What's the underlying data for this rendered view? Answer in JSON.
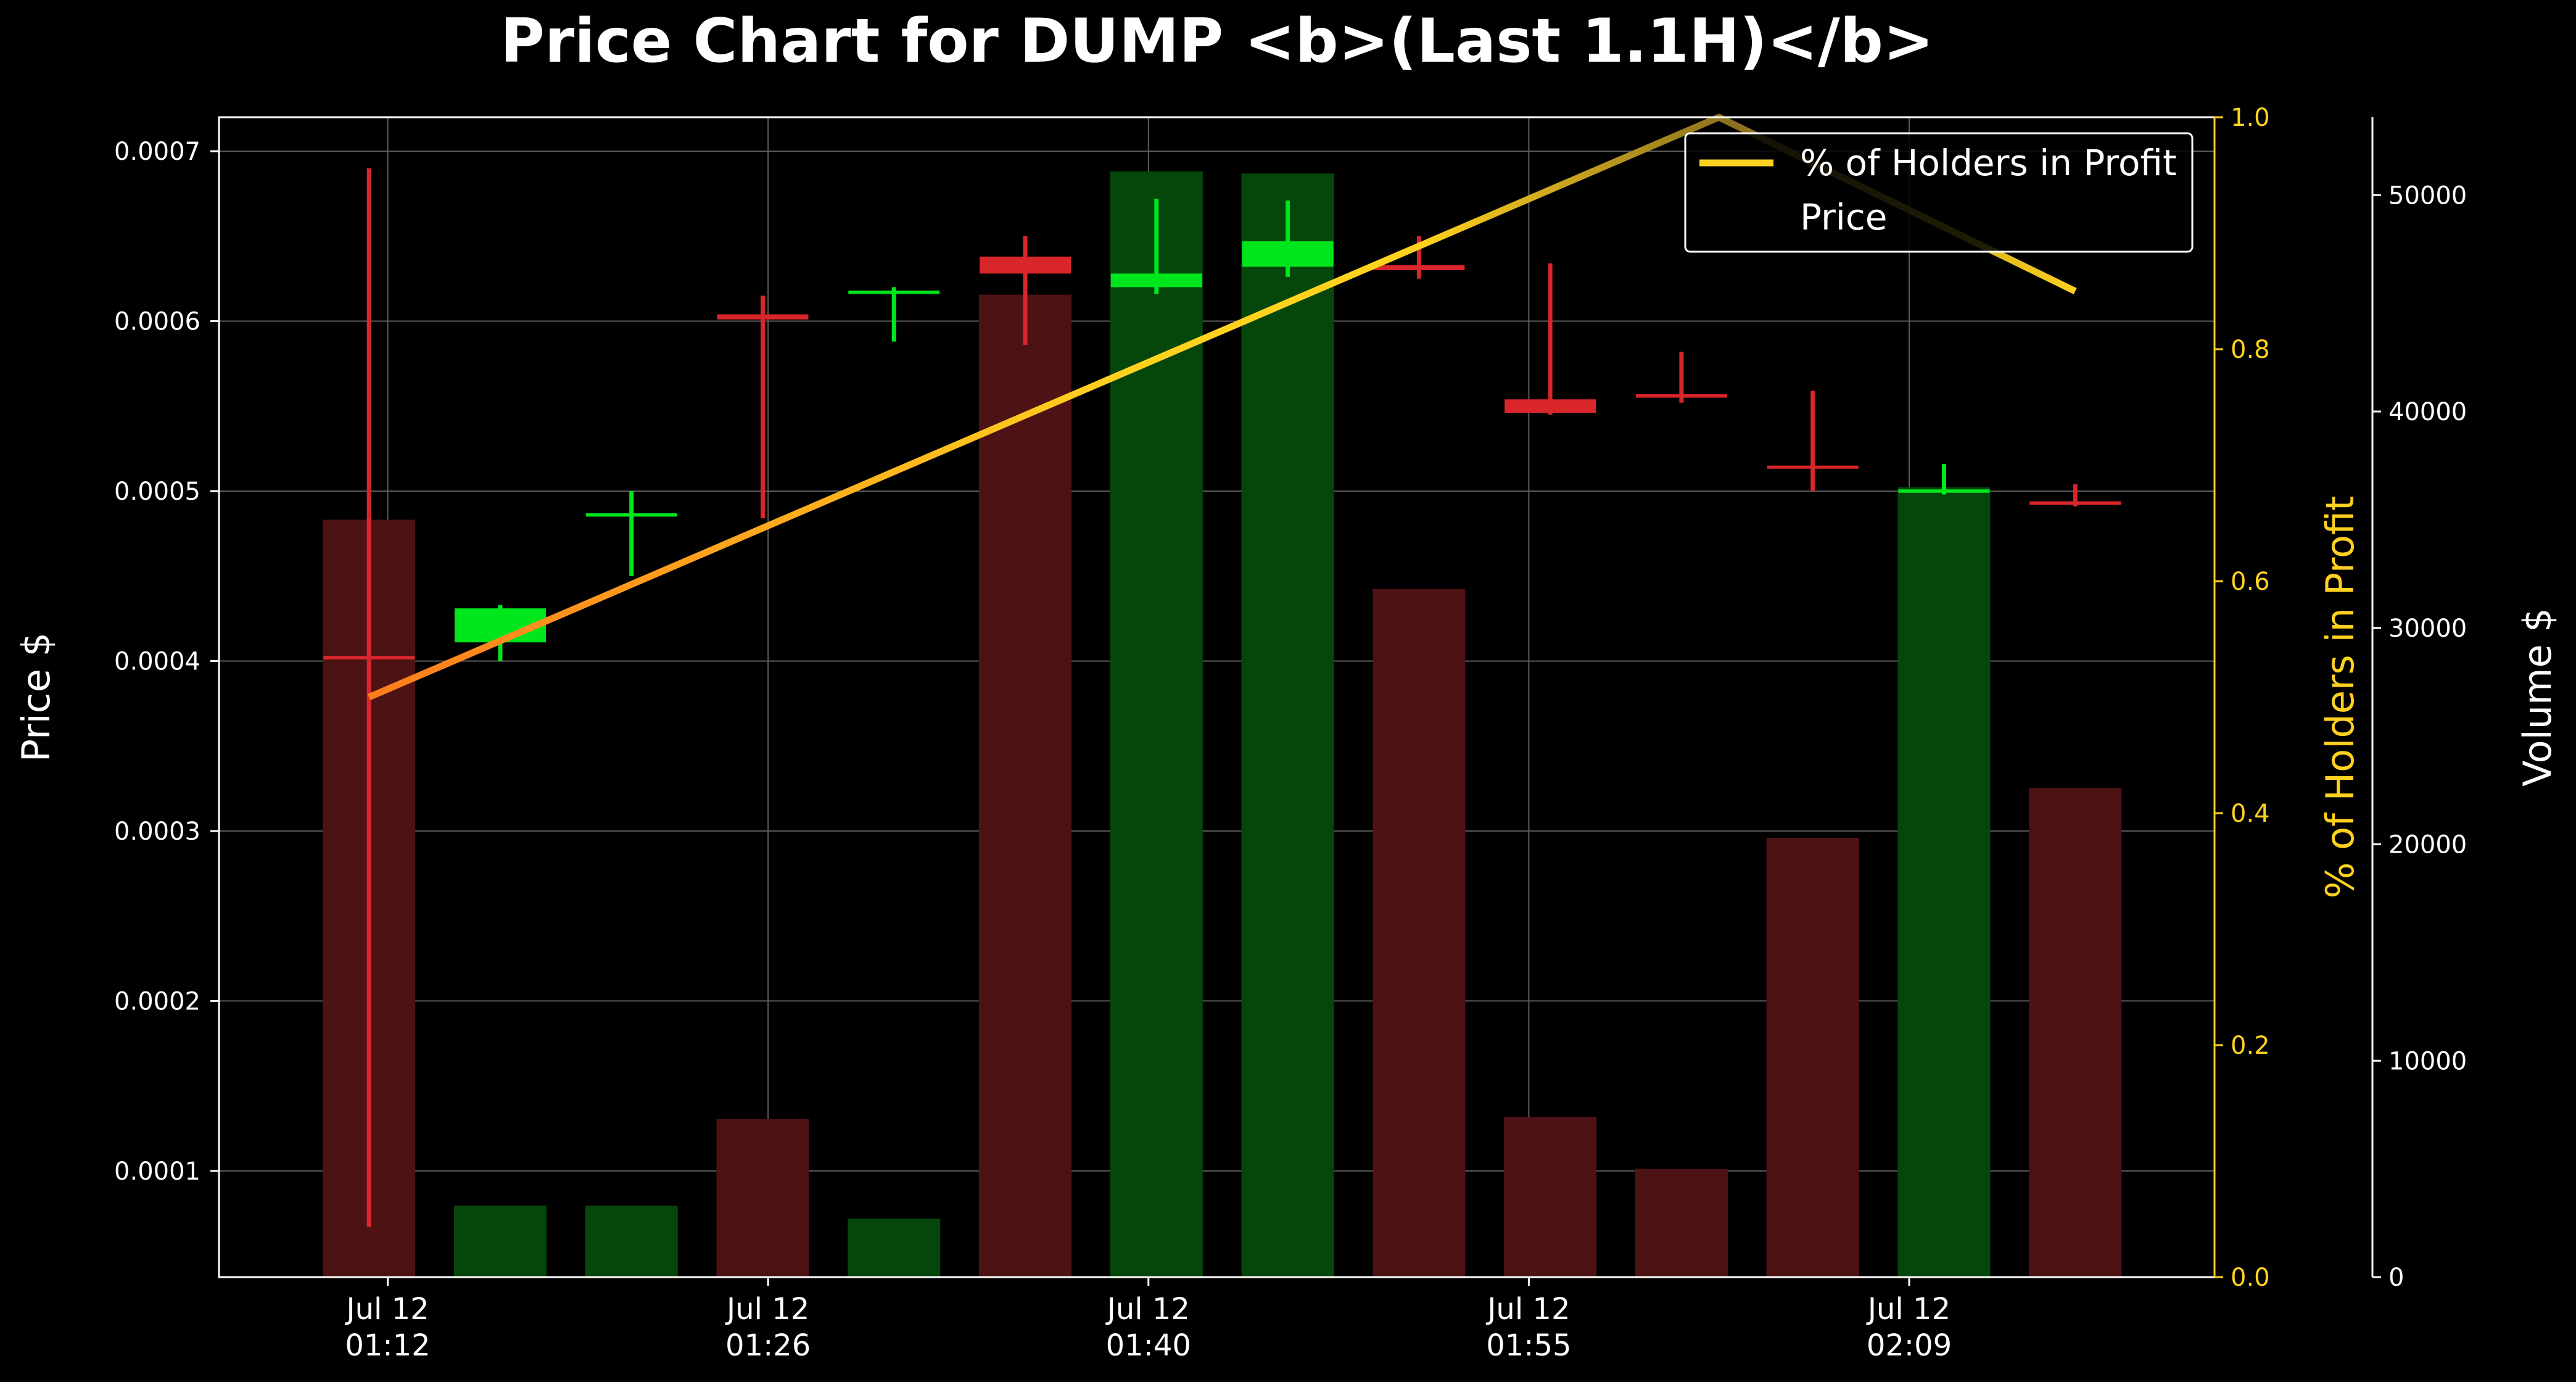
{
  "chart_data": {
    "type": "candlestick",
    "title": "Price Chart for DUMP <b>(Last 1.1H)</b>",
    "xlabel": "",
    "x_ticks": [
      {
        "t": 4.3,
        "line1": "Jul 12",
        "line2": "01:12"
      },
      {
        "t": 18.5,
        "line1": "Jul 12",
        "line2": "01:26"
      },
      {
        "t": 32.7,
        "line1": "Jul 12",
        "line2": "01:40"
      },
      {
        "t": 46.9,
        "line1": "Jul 12",
        "line2": "01:55"
      },
      {
        "t": 61.1,
        "line1": "Jul 12",
        "line2": "02:09"
      }
    ],
    "x_range_minutes": [
      -2.0,
      72.5
    ],
    "price_axis": {
      "label": "Price $",
      "ylim": [
        3.75e-05,
        0.00072
      ],
      "ticks": [
        0.0001,
        0.0002,
        0.0003,
        0.0004,
        0.0005,
        0.0006,
        0.0007
      ],
      "tick_labels": [
        "0.0001",
        "0.0002",
        "0.0003",
        "0.0004",
        "0.0005",
        "0.0006",
        "0.0007"
      ]
    },
    "profit_axis": {
      "label": "% of Holders in Profit",
      "ylim": [
        0.0,
        1.0
      ],
      "ticks": [
        0.0,
        0.2,
        0.4,
        0.6,
        0.8,
        1.0
      ],
      "tick_labels": [
        "0.0",
        "0.2",
        "0.4",
        "0.6",
        "0.8",
        "1.0"
      ]
    },
    "volume_axis": {
      "label": "Volume $",
      "ylim": [
        0,
        53600
      ],
      "ticks": [
        0,
        10000,
        20000,
        30000,
        40000,
        50000
      ],
      "tick_labels": [
        "0",
        "10000",
        "20000",
        "30000",
        "40000",
        "50000"
      ]
    },
    "candles": [
      {
        "t": 3.6,
        "open": 0.000403,
        "high": 0.00069,
        "low": 6.7e-05,
        "close": 0.000401
      },
      {
        "t": 8.5,
        "open": 0.000411,
        "high": 0.000433,
        "low": 0.0004,
        "close": 0.000431
      },
      {
        "t": 13.4,
        "open": 0.000485,
        "high": 0.0005,
        "low": 0.00045,
        "close": 0.000487
      },
      {
        "t": 18.3,
        "open": 0.000604,
        "high": 0.000615,
        "low": 0.000484,
        "close": 0.000601
      },
      {
        "t": 23.2,
        "open": 0.000616,
        "high": 0.00062,
        "low": 0.000588,
        "close": 0.000618
      },
      {
        "t": 28.1,
        "open": 0.000638,
        "high": 0.00065,
        "low": 0.000586,
        "close": 0.000628
      },
      {
        "t": 33.0,
        "open": 0.00062,
        "high": 0.000672,
        "low": 0.000616,
        "close": 0.000628
      },
      {
        "t": 37.9,
        "open": 0.000632,
        "high": 0.000671,
        "low": 0.000626,
        "close": 0.000647
      },
      {
        "t": 42.8,
        "open": 0.000633,
        "high": 0.00065,
        "low": 0.000625,
        "close": 0.00063
      },
      {
        "t": 47.7,
        "open": 0.000554,
        "high": 0.000634,
        "low": 0.000545,
        "close": 0.000546
      },
      {
        "t": 52.6,
        "open": 0.000557,
        "high": 0.000582,
        "low": 0.000552,
        "close": 0.000555
      },
      {
        "t": 57.5,
        "open": 0.000515,
        "high": 0.000559,
        "low": 0.0005,
        "close": 0.000514
      },
      {
        "t": 62.4,
        "open": 0.000499,
        "high": 0.000516,
        "low": 0.000498,
        "close": 0.000501
      },
      {
        "t": 67.3,
        "open": 0.000494,
        "high": 0.000504,
        "low": 0.000491,
        "close": 0.000492
      }
    ],
    "volume": [
      35000,
      3300,
      3300,
      7300,
      2700,
      45400,
      51100,
      51000,
      31800,
      7400,
      5000,
      20300,
      36500,
      22600
    ],
    "profit_line": {
      "name": "% of Holders in Profit",
      "points": [
        [
          3.6,
          0.5
        ],
        [
          54.0,
          1.0
        ],
        [
          67.3,
          0.85
        ]
      ]
    },
    "legend": {
      "placement": "top-right",
      "entries": [
        "% of Holders in Profit",
        "Price"
      ]
    },
    "colors": {
      "background": "#000000",
      "up": "#00e61c",
      "down": "#d9262a",
      "up_volume": "#05470a",
      "down_volume": "#4d1214",
      "profit_start": "#ff7a1c",
      "profit_mid": "#ffd21f",
      "profit_end": "#4a3d10",
      "grid": "#5c5c5c",
      "axis_gold": "#ffd21f"
    },
    "grid": true
  }
}
